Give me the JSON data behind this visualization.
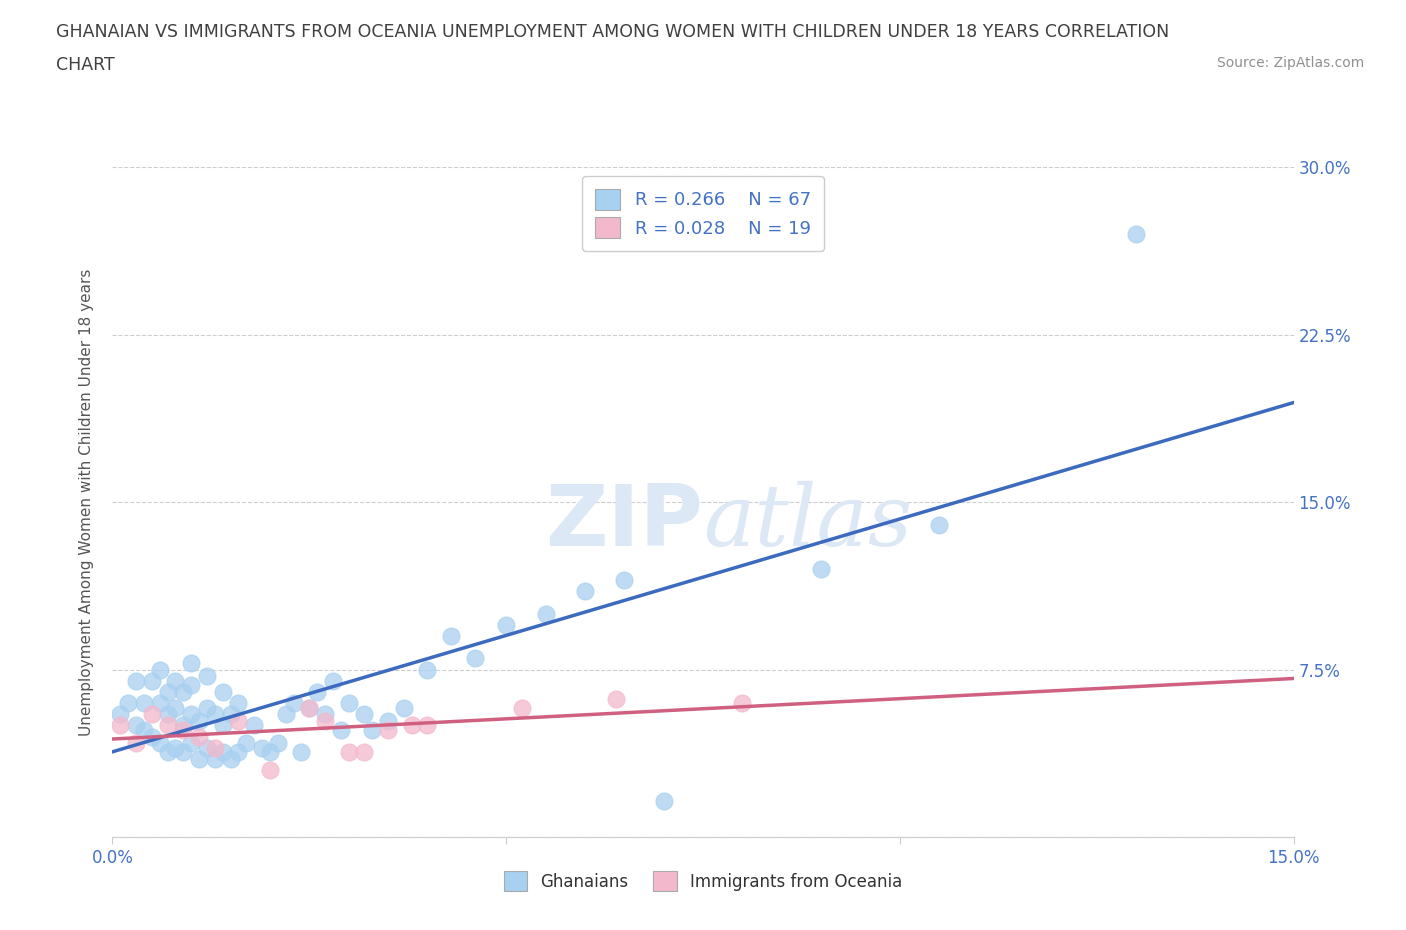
{
  "title_line1": "GHANAIAN VS IMMIGRANTS FROM OCEANIA UNEMPLOYMENT AMONG WOMEN WITH CHILDREN UNDER 18 YEARS CORRELATION",
  "title_line2": "CHART",
  "source_text": "Source: ZipAtlas.com",
  "ylabel": "Unemployment Among Women with Children Under 18 years",
  "xlim": [
    0.0,
    0.15
  ],
  "ylim": [
    0.0,
    0.3
  ],
  "xticks": [
    0.0,
    0.05,
    0.1,
    0.15
  ],
  "xtick_labels": [
    "0.0%",
    "",
    "",
    "15.0%"
  ],
  "ytick_labels": [
    "",
    "7.5%",
    "15.0%",
    "22.5%",
    "30.0%"
  ],
  "yticks": [
    0.0,
    0.075,
    0.15,
    0.225,
    0.3
  ],
  "legend_r1": "R = 0.266",
  "legend_n1": "N = 67",
  "legend_r2": "R = 0.028",
  "legend_n2": "N = 19",
  "color_ghanaian": "#a8d0f0",
  "color_oceania": "#f4b8cc",
  "color_line_ghanaian": "#3b6abf",
  "color_line_oceania": "#d06080",
  "color_title": "#404040",
  "color_source": "#909090",
  "color_axis_labels": "#4472c4",
  "watermark_color": "#dce8f5",
  "background_color": "#ffffff",
  "grid_color": "#c8c8c8",
  "ghanaian_x": [
    0.001,
    0.002,
    0.003,
    0.003,
    0.004,
    0.004,
    0.005,
    0.005,
    0.006,
    0.006,
    0.006,
    0.007,
    0.007,
    0.007,
    0.008,
    0.008,
    0.008,
    0.009,
    0.009,
    0.009,
    0.01,
    0.01,
    0.01,
    0.01,
    0.011,
    0.011,
    0.012,
    0.012,
    0.012,
    0.013,
    0.013,
    0.014,
    0.014,
    0.014,
    0.015,
    0.015,
    0.016,
    0.016,
    0.017,
    0.018,
    0.019,
    0.02,
    0.021,
    0.022,
    0.023,
    0.024,
    0.025,
    0.026,
    0.027,
    0.028,
    0.029,
    0.03,
    0.032,
    0.033,
    0.035,
    0.037,
    0.04,
    0.043,
    0.046,
    0.05,
    0.055,
    0.06,
    0.065,
    0.07,
    0.09,
    0.105,
    0.13
  ],
  "ghanaian_y": [
    0.055,
    0.06,
    0.07,
    0.05,
    0.048,
    0.06,
    0.045,
    0.07,
    0.042,
    0.06,
    0.075,
    0.038,
    0.055,
    0.065,
    0.04,
    0.058,
    0.07,
    0.038,
    0.05,
    0.065,
    0.042,
    0.055,
    0.068,
    0.078,
    0.035,
    0.052,
    0.04,
    0.058,
    0.072,
    0.035,
    0.055,
    0.038,
    0.05,
    0.065,
    0.035,
    0.055,
    0.038,
    0.06,
    0.042,
    0.05,
    0.04,
    0.038,
    0.042,
    0.055,
    0.06,
    0.038,
    0.058,
    0.065,
    0.055,
    0.07,
    0.048,
    0.06,
    0.055,
    0.048,
    0.052,
    0.058,
    0.075,
    0.09,
    0.08,
    0.095,
    0.1,
    0.11,
    0.115,
    0.016,
    0.12,
    0.14,
    0.27
  ],
  "oceania_x": [
    0.001,
    0.003,
    0.005,
    0.007,
    0.009,
    0.011,
    0.013,
    0.016,
    0.02,
    0.025,
    0.027,
    0.03,
    0.032,
    0.035,
    0.038,
    0.04,
    0.052,
    0.064,
    0.08
  ],
  "oceania_y": [
    0.05,
    0.042,
    0.055,
    0.05,
    0.048,
    0.045,
    0.04,
    0.052,
    0.03,
    0.058,
    0.052,
    0.038,
    0.038,
    0.048,
    0.05,
    0.05,
    0.058,
    0.062,
    0.06
  ]
}
